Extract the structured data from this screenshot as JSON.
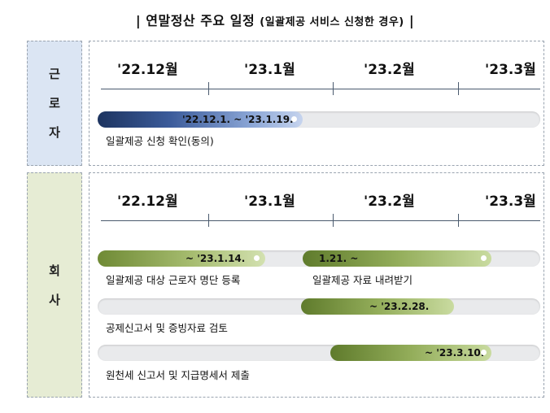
{
  "title": {
    "main": "| 연말정산 주요 일정",
    "sub": "(일괄제공 서비스 신청한 경우)",
    "end": "|"
  },
  "months": [
    "'22.12월",
    "'23.1월",
    "'23.2월",
    "'23.3월"
  ],
  "colors": {
    "worker_side": "#dbe5f3",
    "company_side": "#e6ecd4",
    "bar_blue": "#1d3460",
    "bar_green": "#6f8a35",
    "track": "#e9eaec"
  },
  "worker": {
    "side_chars": [
      "근",
      "로",
      "자"
    ],
    "tasks": [
      {
        "bar_text": "'22.12.1. ~ '23.1.19.",
        "label": "일괄제공 신청 확인(동의)"
      }
    ]
  },
  "company": {
    "side_chars": [
      "회",
      "사"
    ],
    "tasks": [
      {
        "bar_text": "~ '23.1.14.",
        "label": "일괄제공 대상 근로자 명단 등록"
      },
      {
        "bar_text": "1.21. ~",
        "label": "일괄제공 자료 내려받기"
      },
      {
        "bar_text": "~ '23.2.28.",
        "label": "공제신고서 및 증빙자료 검토"
      },
      {
        "bar_text": "~ '23.3.10.",
        "label": "원천세 신고서 및 지급명세서 제출"
      }
    ]
  }
}
